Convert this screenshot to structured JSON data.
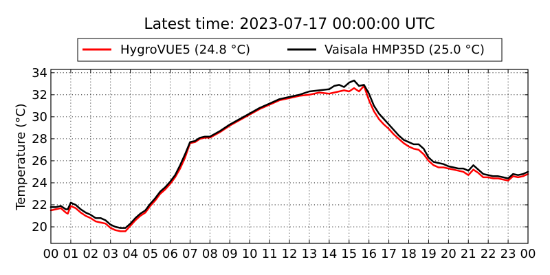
{
  "chart_data": {
    "type": "line",
    "title": "Latest time: 2023-07-17 00:00:00 UTC",
    "ylabel": "Temperature (°C)",
    "xlabel": "",
    "xlim": [
      0,
      24
    ],
    "ylim": [
      18.5,
      34.3
    ],
    "grid": true,
    "legend_position": "top",
    "x_ticks": [
      0,
      1,
      2,
      3,
      4,
      5,
      6,
      7,
      8,
      9,
      10,
      11,
      12,
      13,
      14,
      15,
      16,
      17,
      18,
      19,
      20,
      21,
      22,
      23,
      24
    ],
    "x_tick_labels": [
      "00",
      "01",
      "02",
      "03",
      "04",
      "05",
      "06",
      "07",
      "08",
      "09",
      "10",
      "11",
      "12",
      "13",
      "14",
      "15",
      "16",
      "17",
      "18",
      "19",
      "20",
      "21",
      "22",
      "23",
      "00"
    ],
    "y_ticks": [
      20,
      22,
      24,
      26,
      28,
      30,
      32,
      34
    ],
    "y_tick_labels": [
      "20",
      "22",
      "24",
      "26",
      "28",
      "30",
      "32",
      "34"
    ],
    "series": [
      {
        "name": "HygroVUE5 (24.8 °C)",
        "color": "#ff0000",
        "x": [
          0,
          0.25,
          0.5,
          0.75,
          0.85,
          1,
          1.25,
          1.5,
          1.75,
          2,
          2.25,
          2.5,
          2.75,
          3,
          3.25,
          3.5,
          3.75,
          4,
          4.25,
          4.5,
          4.75,
          5,
          5.25,
          5.5,
          5.75,
          6,
          6.25,
          6.5,
          6.75,
          7,
          7.25,
          7.5,
          7.75,
          8,
          8.5,
          9,
          9.5,
          10,
          10.5,
          11,
          11.5,
          12,
          12.5,
          13,
          13.5,
          14,
          14.25,
          14.5,
          14.75,
          15,
          15.25,
          15.5,
          15.75,
          16,
          16.25,
          16.5,
          16.75,
          17,
          17.25,
          17.5,
          17.75,
          18,
          18.25,
          18.5,
          18.75,
          19,
          19.25,
          19.5,
          19.75,
          20,
          20.25,
          20.5,
          20.75,
          21,
          21.25,
          21.5,
          21.75,
          22,
          22.25,
          22.5,
          22.75,
          23,
          23.25,
          23.5,
          23.75,
          24
        ],
        "values": [
          21.5,
          21.6,
          21.7,
          21.3,
          21.2,
          21.9,
          21.7,
          21.3,
          21.0,
          20.8,
          20.5,
          20.4,
          20.3,
          19.9,
          19.7,
          19.6,
          19.6,
          20.1,
          20.6,
          21.0,
          21.3,
          21.9,
          22.4,
          23.0,
          23.4,
          23.9,
          24.5,
          25.3,
          26.3,
          27.6,
          27.7,
          28.0,
          28.1,
          28.1,
          28.6,
          29.2,
          29.7,
          30.2,
          30.7,
          31.1,
          31.5,
          31.7,
          31.9,
          32.0,
          32.2,
          32.1,
          32.2,
          32.3,
          32.4,
          32.3,
          32.6,
          32.3,
          32.8,
          31.5,
          30.5,
          29.8,
          29.3,
          28.9,
          28.4,
          28.0,
          27.6,
          27.3,
          27.1,
          27.0,
          26.6,
          26.0,
          25.6,
          25.4,
          25.4,
          25.3,
          25.2,
          25.1,
          25.0,
          24.7,
          25.2,
          24.9,
          24.5,
          24.5,
          24.4,
          24.4,
          24.3,
          24.2,
          24.6,
          24.5,
          24.6,
          24.8
        ]
      },
      {
        "name": "Vaisala HMP35D (25.0 °C)",
        "color": "#000000",
        "x": [
          0,
          0.25,
          0.5,
          0.75,
          0.85,
          1,
          1.25,
          1.5,
          1.75,
          2,
          2.25,
          2.5,
          2.75,
          3,
          3.25,
          3.5,
          3.75,
          4,
          4.25,
          4.5,
          4.75,
          5,
          5.25,
          5.5,
          5.75,
          6,
          6.25,
          6.5,
          6.75,
          7,
          7.25,
          7.5,
          7.75,
          8,
          8.5,
          9,
          9.5,
          10,
          10.5,
          11,
          11.5,
          12,
          12.5,
          13,
          13.5,
          14,
          14.25,
          14.5,
          14.75,
          15,
          15.25,
          15.5,
          15.75,
          16,
          16.25,
          16.5,
          16.75,
          17,
          17.25,
          17.5,
          17.75,
          18,
          18.25,
          18.5,
          18.75,
          19,
          19.25,
          19.5,
          19.75,
          20,
          20.25,
          20.5,
          20.75,
          21,
          21.25,
          21.5,
          21.75,
          22,
          22.25,
          22.5,
          22.75,
          23,
          23.25,
          23.5,
          23.75,
          24
        ],
        "values": [
          21.8,
          21.8,
          21.9,
          21.6,
          21.6,
          22.2,
          22.0,
          21.6,
          21.3,
          21.1,
          20.8,
          20.8,
          20.6,
          20.2,
          20.0,
          19.9,
          19.9,
          20.3,
          20.8,
          21.2,
          21.5,
          22.1,
          22.6,
          23.2,
          23.6,
          24.1,
          24.7,
          25.6,
          26.6,
          27.7,
          27.8,
          28.1,
          28.2,
          28.2,
          28.7,
          29.3,
          29.8,
          30.3,
          30.8,
          31.2,
          31.6,
          31.8,
          32.0,
          32.3,
          32.4,
          32.5,
          32.8,
          32.9,
          32.7,
          33.1,
          33.3,
          32.8,
          32.9,
          32.1,
          31.0,
          30.3,
          29.8,
          29.3,
          28.8,
          28.3,
          27.9,
          27.7,
          27.5,
          27.5,
          27.1,
          26.3,
          25.9,
          25.8,
          25.7,
          25.5,
          25.4,
          25.3,
          25.3,
          25.1,
          25.6,
          25.2,
          24.8,
          24.7,
          24.6,
          24.6,
          24.5,
          24.4,
          24.8,
          24.7,
          24.8,
          25.0
        ]
      }
    ]
  }
}
